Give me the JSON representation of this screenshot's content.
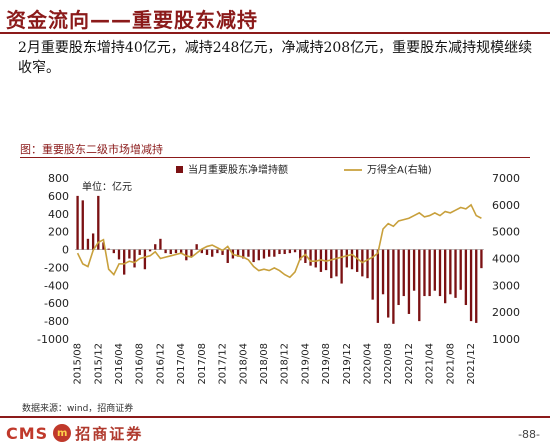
{
  "page": {
    "title": "资金流向——重要股东减持",
    "summary": "2月重要股东增持40亿元，减持248亿元，净减持208亿元，重要股东减持规模继续收窄。",
    "figure_caption": "图：重要股东二级市场增减持",
    "source": "数据来源：wind，招商证券",
    "page_number": "-88-",
    "logo_text": "CMS",
    "logo_badge": "m",
    "company_name": "招商证券"
  },
  "colors": {
    "accent": "#8b1a1a",
    "bar": "#7b1113",
    "line": "#c8a03c",
    "logo": "#c0392b"
  },
  "chart_data": {
    "type": "bar",
    "unit_label": "单位：亿元",
    "legend": {
      "placement": "top",
      "bar_series": "当月重要股东净增持额",
      "line_series": "万得全A(右轴)"
    },
    "y_left": {
      "min": -1000,
      "max": 800,
      "ticks": [
        "800",
        "600",
        "400",
        "200",
        "0",
        "-200",
        "-400",
        "-600",
        "-800",
        "-1000"
      ]
    },
    "y_right": {
      "min": 1000,
      "max": 7000,
      "ticks": [
        "7000",
        "6000",
        "5000",
        "4000",
        "3000",
        "2000",
        "1000"
      ]
    },
    "x_tick_labels": [
      "2015/08",
      "2015/12",
      "2016/04",
      "2016/08",
      "2016/12",
      "2017/04",
      "2017/08",
      "2017/12",
      "2018/04",
      "2018/08",
      "2018/12",
      "2019/04",
      "2019/08",
      "2019/12",
      "2020/04",
      "2020/08",
      "2020/12",
      "2021/04",
      "2021/08",
      "2021/12"
    ],
    "months": [
      "2015/08",
      "2015/09",
      "2015/10",
      "2015/11",
      "2015/12",
      "2016/01",
      "2016/02",
      "2016/03",
      "2016/04",
      "2016/05",
      "2016/06",
      "2016/07",
      "2016/08",
      "2016/09",
      "2016/10",
      "2016/11",
      "2016/12",
      "2017/01",
      "2017/02",
      "2017/03",
      "2017/04",
      "2017/05",
      "2017/06",
      "2017/07",
      "2017/08",
      "2017/09",
      "2017/10",
      "2017/11",
      "2017/12",
      "2018/01",
      "2018/02",
      "2018/03",
      "2018/04",
      "2018/05",
      "2018/06",
      "2018/07",
      "2018/08",
      "2018/09",
      "2018/10",
      "2018/11",
      "2018/12",
      "2019/01",
      "2019/02",
      "2019/03",
      "2019/04",
      "2019/05",
      "2019/06",
      "2019/07",
      "2019/08",
      "2019/09",
      "2019/10",
      "2019/11",
      "2019/12",
      "2020/01",
      "2020/02",
      "2020/03",
      "2020/04",
      "2020/05",
      "2020/06",
      "2020/07",
      "2020/08",
      "2020/09",
      "2020/10",
      "2020/11",
      "2020/12",
      "2021/01",
      "2021/02",
      "2021/03",
      "2021/04",
      "2021/05",
      "2021/06",
      "2021/07",
      "2021/08",
      "2021/09",
      "2021/10",
      "2021/11",
      "2021/12",
      "2022/01",
      "2022/02"
    ],
    "net_increase": [
      600,
      550,
      120,
      180,
      600,
      80,
      10,
      -40,
      -110,
      -280,
      -100,
      -200,
      -60,
      -220,
      -20,
      60,
      120,
      -40,
      -50,
      -40,
      -50,
      -120,
      -80,
      60,
      -40,
      -60,
      -80,
      -40,
      -60,
      -150,
      -100,
      -80,
      -100,
      -80,
      -140,
      -120,
      -100,
      -80,
      -80,
      -50,
      -50,
      -40,
      -30,
      -120,
      -150,
      -180,
      -200,
      -250,
      -230,
      -320,
      -300,
      -380,
      -200,
      -220,
      -250,
      -300,
      -320,
      -560,
      -820,
      -500,
      -760,
      -830,
      -620,
      -520,
      -720,
      -460,
      -800,
      -520,
      -520,
      -460,
      -520,
      -600,
      -500,
      -540,
      -450,
      -620,
      -800,
      -820,
      -208
    ],
    "wind_all_a": [
      4200,
      3800,
      3700,
      4300,
      4600,
      4700,
      3600,
      3400,
      3800,
      3800,
      3900,
      3850,
      4000,
      4050,
      4100,
      4250,
      4000,
      4050,
      4100,
      4150,
      4200,
      4100,
      4050,
      4200,
      4350,
      4450,
      4500,
      4400,
      4300,
      4450,
      4150,
      4100,
      4050,
      3950,
      3700,
      3550,
      3600,
      3550,
      3650,
      3550,
      3400,
      3300,
      3500,
      4000,
      4150,
      3900,
      3900,
      3950,
      3900,
      3950,
      4000,
      4050,
      4100,
      4150,
      4000,
      3850,
      3950,
      4050,
      4200,
      5100,
      5300,
      5200,
      5400,
      5450,
      5500,
      5600,
      5700,
      5550,
      5600,
      5700,
      5600,
      5750,
      5700,
      5800,
      5900,
      5850,
      6000,
      5600,
      5500
    ]
  }
}
